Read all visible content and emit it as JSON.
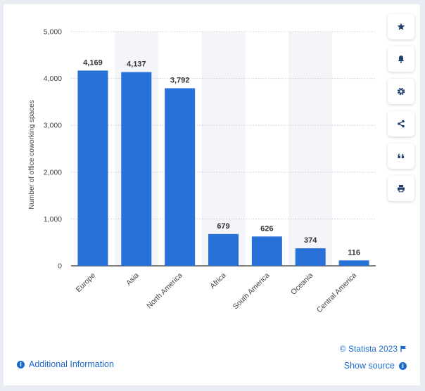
{
  "chart_data": {
    "type": "bar",
    "categories": [
      "Europe",
      "Asia",
      "North America",
      "Africa",
      "South America",
      "Oceania",
      "Central America"
    ],
    "values": [
      4169,
      4137,
      3792,
      679,
      626,
      374,
      116
    ],
    "value_labels": [
      "4,169",
      "4,137",
      "3,792",
      "679",
      "626",
      "374",
      "116"
    ],
    "ylabel": "Number of office coworking spaces",
    "ylim": [
      0,
      5000
    ],
    "yticks": [
      0,
      1000,
      2000,
      3000,
      4000,
      5000
    ],
    "ytick_labels": [
      "0",
      "1,000",
      "2,000",
      "3,000",
      "4,000",
      "5,000"
    ],
    "grid": true,
    "bar_color": "#2871d9"
  },
  "footer": {
    "credit": "© Statista 2023",
    "additional_info": "Additional Information",
    "show_source": "Show source"
  },
  "toolbar": {
    "icons": [
      "star-icon",
      "bell-icon",
      "gear-icon",
      "share-icon",
      "quote-icon",
      "print-icon"
    ]
  },
  "colors": {
    "accent": "#1c6bcc",
    "bar": "#2871d9",
    "band": "#f4f5f8"
  }
}
